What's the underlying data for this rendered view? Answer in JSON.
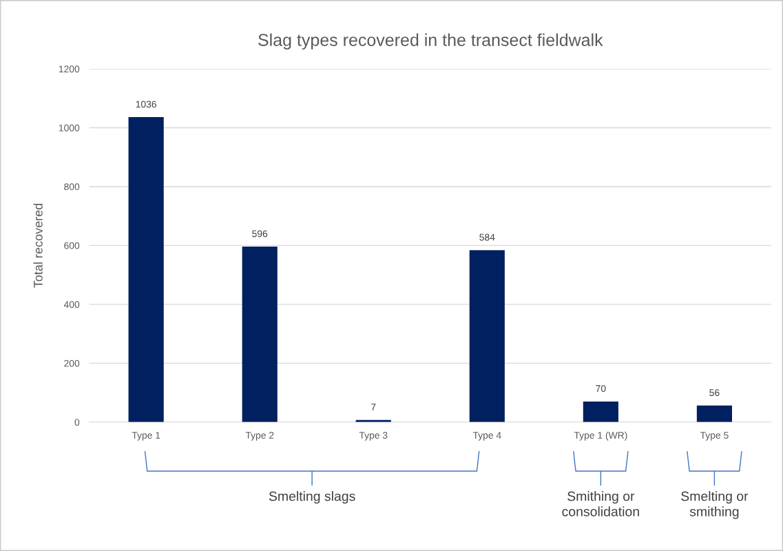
{
  "chart_data": {
    "type": "bar",
    "title": "Slag types recovered in the transect fieldwalk",
    "ylabel": "Total recovered",
    "categories": [
      "Type 1",
      "Type 2",
      "Type 3",
      "Type 4",
      "Type 1 (WR)",
      "Type 5"
    ],
    "values": [
      1036,
      596,
      7,
      584,
      70,
      56
    ],
    "color": "#002060",
    "ylim": [
      0,
      1200
    ],
    "yticks": [
      0,
      200,
      400,
      600,
      800,
      1000,
      1200
    ],
    "grid": "y",
    "data_labels": true,
    "annotations": [
      "Smelting slags",
      "Smithing or\nconsolidation",
      "Smelting or\nsmithing"
    ]
  }
}
